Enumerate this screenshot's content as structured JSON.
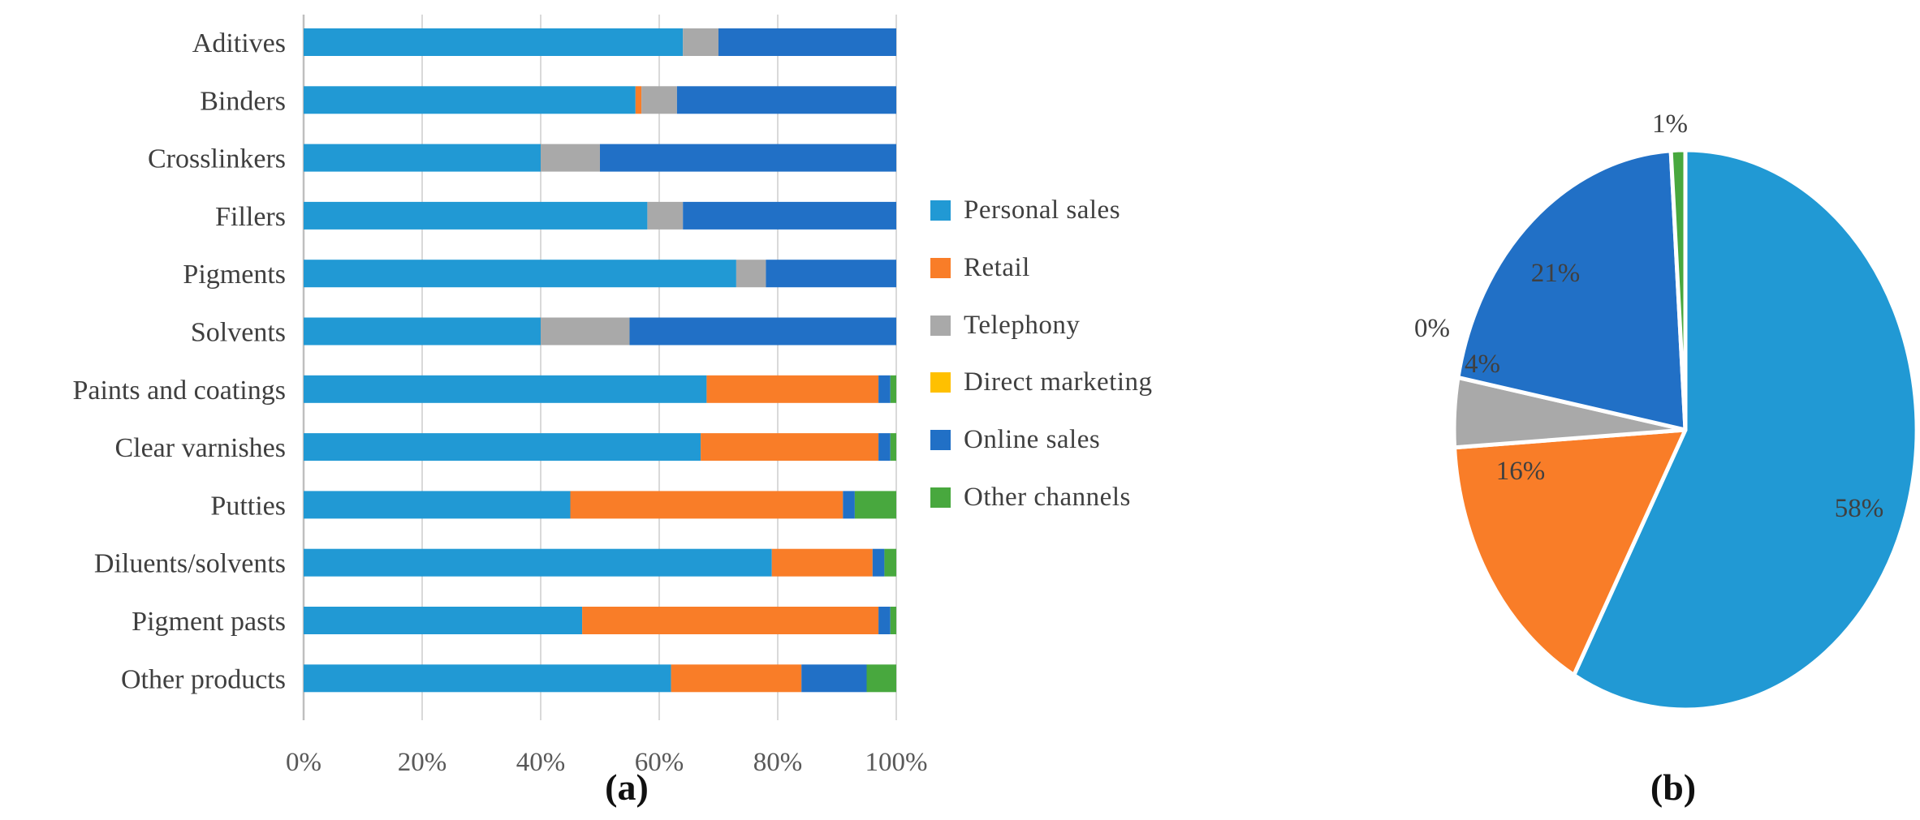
{
  "figure": {
    "captions": {
      "a": "(a)",
      "b": "(b)"
    }
  },
  "legend": {
    "items": [
      {
        "label": "Personal sales",
        "color": "#2199D4"
      },
      {
        "label": "Retail",
        "color": "#F97D28"
      },
      {
        "label": "Telephony",
        "color": "#A9A9A9"
      },
      {
        "label": "Direct marketing",
        "color": "#FFC000"
      },
      {
        "label": "Online sales",
        "color": "#2170C6"
      },
      {
        "label": "Other channels",
        "color": "#48A83E"
      }
    ]
  },
  "chart_data": [
    {
      "type": "bar",
      "orientation": "horizontal",
      "stacked": true,
      "units": "percent",
      "xlim": [
        0,
        100
      ],
      "x_ticks": [
        "0%",
        "20%",
        "40%",
        "60%",
        "80%",
        "100%"
      ],
      "grid": true,
      "legend_position": "right",
      "categories": [
        "Aditives",
        "Binders",
        "Crosslinkers",
        "Fillers",
        "Pigments",
        "Solvents",
        "Paints and coatings",
        "Clear varnishes",
        "Putties",
        "Diluents/solvents",
        "Pigment pasts",
        "Other products"
      ],
      "series": [
        {
          "name": "Personal sales",
          "color": "#2199D4",
          "values": [
            64,
            56,
            40,
            58,
            73,
            40,
            68,
            67,
            45,
            79,
            47,
            62
          ]
        },
        {
          "name": "Retail",
          "color": "#F97D28",
          "values": [
            0,
            1,
            0,
            0,
            0,
            0,
            29,
            30,
            46,
            17,
            50,
            22
          ]
        },
        {
          "name": "Telephony",
          "color": "#A9A9A9",
          "values": [
            6,
            6,
            10,
            6,
            5,
            15,
            0,
            0,
            0,
            0,
            0,
            0
          ]
        },
        {
          "name": "Direct marketing",
          "color": "#FFC000",
          "values": [
            0,
            0,
            0,
            0,
            0,
            0,
            0,
            0,
            0,
            0,
            0,
            0
          ]
        },
        {
          "name": "Online sales",
          "color": "#2170C6",
          "values": [
            30,
            37,
            50,
            36,
            22,
            45,
            2,
            2,
            2,
            2,
            2,
            11
          ]
        },
        {
          "name": "Other channels",
          "color": "#48A83E",
          "values": [
            0,
            0,
            0,
            0,
            0,
            0,
            1,
            1,
            7,
            2,
            1,
            5
          ]
        }
      ]
    },
    {
      "type": "pie",
      "start_angle": "top",
      "direction": "clockwise",
      "slices": [
        {
          "label": "Personal sales",
          "value": 58,
          "display": "58%",
          "color": "#2199D4"
        },
        {
          "label": "Retail",
          "value": 16,
          "display": "16%",
          "color": "#F97D28"
        },
        {
          "label": "Telephony",
          "value": 4,
          "display": "4%",
          "color": "#A9A9A9"
        },
        {
          "label": "Direct marketing",
          "value": 0,
          "display": "0%",
          "color": "#FFC000"
        },
        {
          "label": "Online sales",
          "value": 21,
          "display": "21%",
          "color": "#2170C6"
        },
        {
          "label": "Other channels",
          "value": 1,
          "display": "1%",
          "color": "#48A83E"
        }
      ]
    }
  ]
}
